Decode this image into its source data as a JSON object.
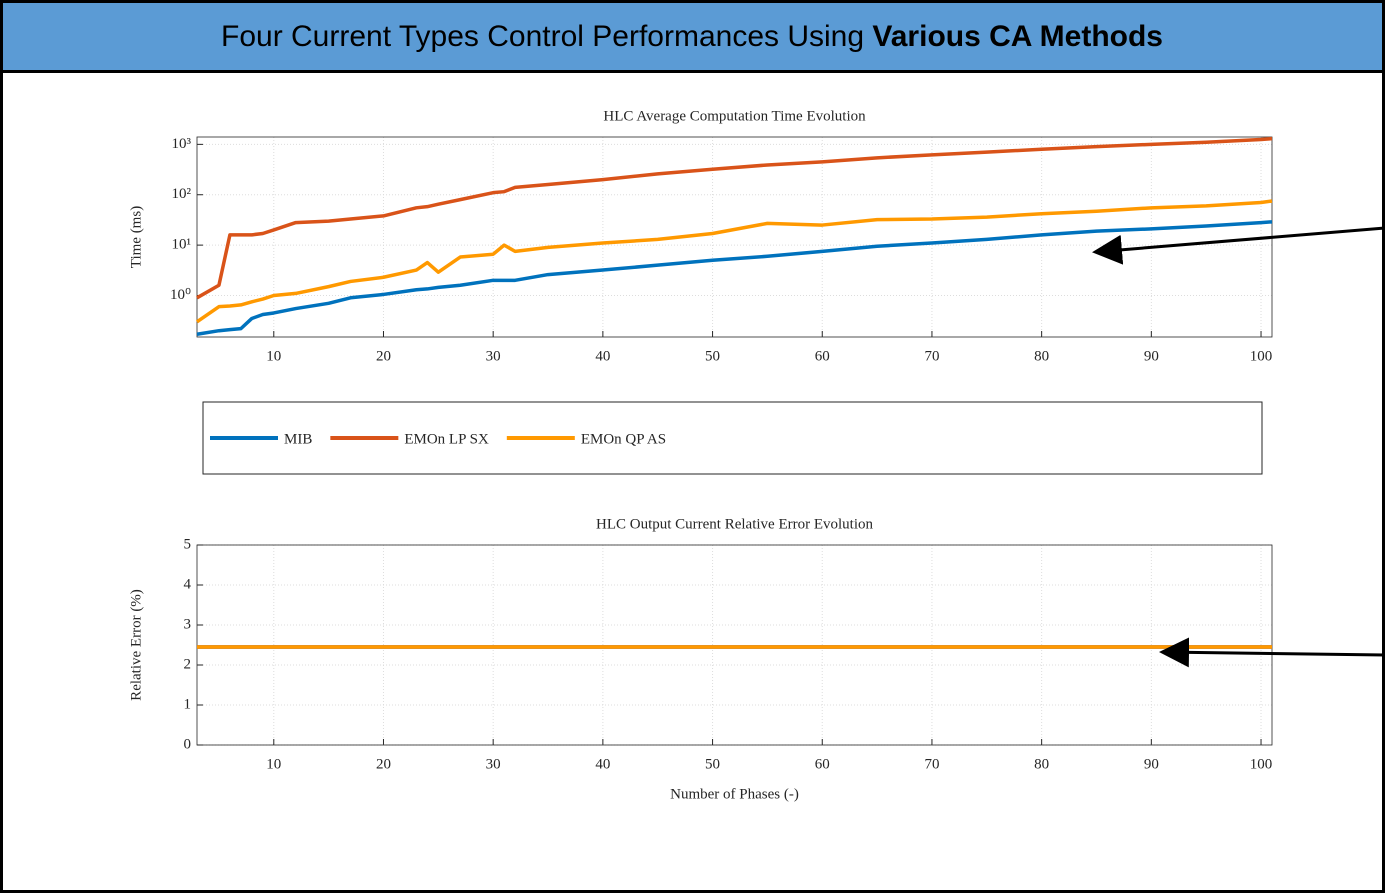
{
  "header": {
    "title": "Four Current Types Control Performances Using",
    "title_bold": "Various CA Methods"
  },
  "chart_data": [
    {
      "type": "line",
      "title": "HLC Average Computation Time Evolution",
      "ylabel": "Time (ms)",
      "ylog": true,
      "grid": true,
      "x": [
        3,
        5,
        6,
        7,
        8,
        9,
        10,
        12,
        15,
        17,
        20,
        23,
        24,
        25,
        27,
        30,
        31,
        32,
        35,
        40,
        45,
        50,
        55,
        60,
        65,
        70,
        75,
        80,
        85,
        90,
        95,
        100,
        101
      ],
      "series": [
        {
          "name": "MIB",
          "color": "#0072bd",
          "values": [
            0.17,
            0.2,
            0.21,
            0.22,
            0.35,
            0.42,
            0.45,
            0.55,
            0.7,
            0.9,
            1.05,
            1.3,
            1.35,
            1.45,
            1.6,
            2.0,
            2.0,
            2.0,
            2.6,
            3.2,
            4.0,
            5.0,
            6.0,
            7.5,
            9.5,
            11,
            13,
            16,
            19,
            21,
            24,
            28,
            29
          ]
        },
        {
          "name": "EMOn LP SX",
          "color": "#d95319",
          "values": [
            0.9,
            1.6,
            16,
            16,
            16,
            17,
            20,
            28,
            30,
            33,
            38,
            55,
            58,
            65,
            80,
            110,
            115,
            140,
            160,
            200,
            260,
            320,
            390,
            450,
            540,
            620,
            700,
            800,
            900,
            1000,
            1100,
            1250,
            1300
          ]
        },
        {
          "name": "EMOn QP AS",
          "color": "#ff9900",
          "values": [
            0.3,
            0.6,
            0.62,
            0.65,
            0.75,
            0.85,
            1.0,
            1.1,
            1.5,
            1.9,
            2.3,
            3.2,
            4.5,
            2.9,
            5.8,
            6.6,
            10,
            7.5,
            9,
            11,
            13,
            17,
            27,
            25,
            32,
            33,
            36,
            42,
            47,
            55,
            60,
            70,
            75
          ]
        }
      ],
      "xlim": [
        3,
        101
      ],
      "xticks": [
        10,
        20,
        30,
        40,
        50,
        60,
        70,
        80,
        90,
        100
      ],
      "ylim": [
        0.15,
        1400
      ],
      "yticks": [
        {
          "value": 1,
          "label": "10⁰"
        },
        {
          "value": 10,
          "label": "10¹"
        },
        {
          "value": 100,
          "label": "10²"
        },
        {
          "value": 1000,
          "label": "10³"
        }
      ]
    },
    {
      "type": "line",
      "title": "HLC Output Current Relative Error Evolution",
      "ylabel": "Relative Error (%)",
      "xlabel": "Number of Phases (-)",
      "grid": true,
      "x": [
        3,
        101
      ],
      "series": [
        {
          "color": "#0072bd",
          "values": [
            2.45,
            2.45
          ]
        },
        {
          "color": "#d95319",
          "values": [
            2.45,
            2.45
          ]
        },
        {
          "color": "#ff9900",
          "values": [
            2.45,
            2.45
          ]
        }
      ],
      "xlim": [
        3,
        101
      ],
      "xticks": [
        10,
        20,
        30,
        40,
        50,
        60,
        70,
        80,
        90,
        100
      ],
      "ylim": [
        0,
        5
      ],
      "yticks": [
        0,
        1,
        2,
        3,
        4,
        5
      ]
    }
  ]
}
